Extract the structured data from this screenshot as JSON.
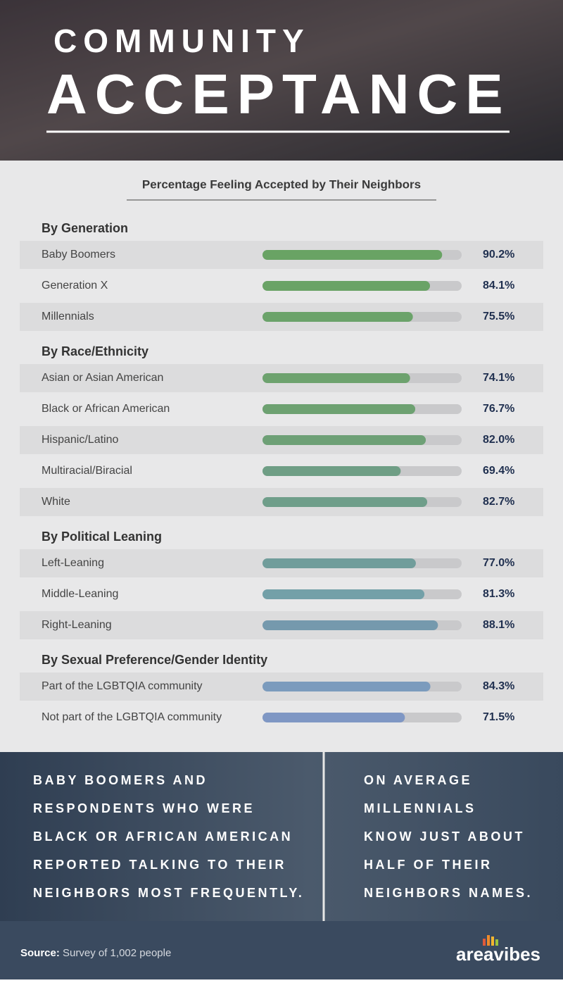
{
  "header": {
    "title_lines": [
      "COMMUNITY",
      "ACCEPTANCE"
    ]
  },
  "chart_data": {
    "type": "bar",
    "title": "Percentage Feeling Accepted by Their Neighbors",
    "xlim": [
      0,
      100
    ],
    "groups": [
      {
        "name": "By Generation",
        "categories": [
          "Baby Boomers",
          "Generation X",
          "Millennials"
        ],
        "values": [
          90.2,
          84.1,
          75.5
        ],
        "value_labels": [
          "90.2%",
          "84.1%",
          "75.5%"
        ],
        "colors": [
          "#69a364",
          "#6aa366",
          "#6ba36a"
        ]
      },
      {
        "name": "By Race/Ethnicity",
        "categories": [
          "Asian or Asian American",
          "Black or African American",
          "Hispanic/Latino",
          "Multiracial/Biracial",
          "White"
        ],
        "values": [
          74.1,
          76.7,
          82.0,
          69.4,
          82.7
        ],
        "value_labels": [
          "74.1%",
          "76.7%",
          "82.0%",
          "69.4%",
          "82.7%"
        ],
        "colors": [
          "#6da26e",
          "#6da171",
          "#6ea076",
          "#6f9e85",
          "#6f9e8a"
        ]
      },
      {
        "name": "By Political Leaning",
        "categories": [
          "Left-Leaning",
          "Middle-Leaning",
          "Right-Leaning"
        ],
        "values": [
          77.0,
          81.3,
          88.1
        ],
        "value_labels": [
          "77.0%",
          "81.3%",
          "88.1%"
        ],
        "colors": [
          "#719d9b",
          "#73a0a8",
          "#7599ad"
        ]
      },
      {
        "name": "By Sexual Preference/Gender Identity",
        "categories": [
          "Part of the LGBTQIA community",
          "Not part of the LGBTQIA community"
        ],
        "values": [
          84.3,
          71.5
        ],
        "value_labels": [
          "84.3%",
          "71.5%"
        ],
        "colors": [
          "#7b9bbd",
          "#7f97c4"
        ]
      }
    ]
  },
  "callouts": [
    {
      "lines": [
        "BABY BOOMERS AND",
        "RESPONDENTS WHO WERE",
        "BLACK OR AFRICAN AMERICAN",
        "REPORTED TALKING TO THEIR",
        "NEIGHBORS MOST FREQUENTLY."
      ]
    },
    {
      "lines": [
        "ON AVERAGE",
        "MILLENNIALS",
        "KNOW JUST ABOUT",
        "HALF OF THEIR",
        "NEIGHBORS NAMES."
      ]
    }
  ],
  "footer": {
    "source_label": "Source:",
    "source_text": "Survey of 1,002 people",
    "logo": "areavibes"
  }
}
